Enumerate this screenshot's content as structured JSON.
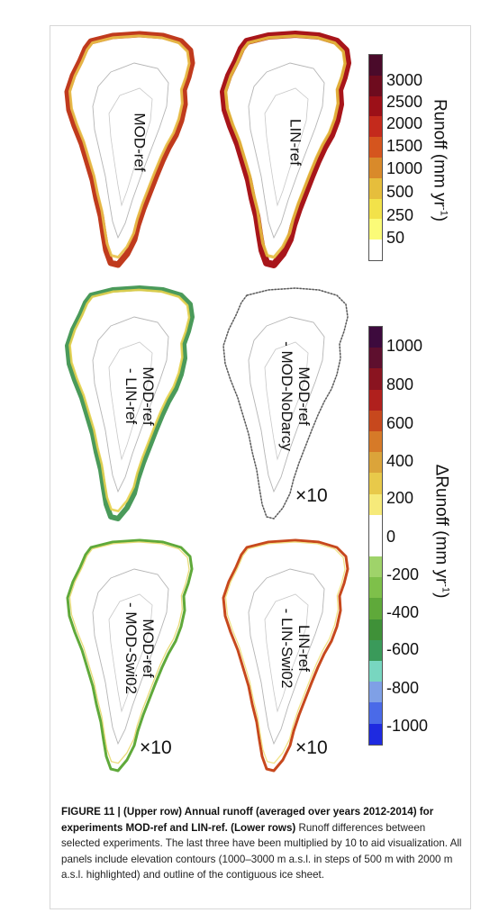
{
  "panels": [
    {
      "label_line1": "MOD-ref",
      "label_line2": "",
      "multiplier": ""
    },
    {
      "label_line1": "LIN-ref",
      "label_line2": "",
      "multiplier": ""
    },
    {
      "label_line1": "MOD-ref",
      "label_line2": "- LIN-ref",
      "multiplier": ""
    },
    {
      "label_line1": "MOD-ref",
      "label_line2": "- MOD-NoDarcy",
      "multiplier": "×10"
    },
    {
      "label_line1": "MOD-ref",
      "label_line2": "- MOD-Swi02",
      "multiplier": "×10"
    },
    {
      "label_line1": "LIN-ref",
      "label_line2": "- LIN-Swi02",
      "multiplier": "×10"
    }
  ],
  "runoff_colorbar": {
    "title": "Runoff (mm yr",
    "title_sup": "-1",
    "title_end": ")",
    "ticks": [
      "3000",
      "2500",
      "2000",
      "1500",
      "1000",
      "500",
      "250",
      "50"
    ],
    "colors": [
      "#4a0a2a",
      "#6e0b1e",
      "#9c1018",
      "#c42a1c",
      "#d5551e",
      "#d98a2a",
      "#e6be3c",
      "#f2e24a",
      "#fbfb78",
      "#ffffff"
    ]
  },
  "delta_colorbar": {
    "title": "ΔRunoff (mm yr",
    "title_sup": "-1",
    "title_end": ")",
    "ticks": [
      "1000",
      "800",
      "600",
      "400",
      "200",
      "0",
      "-200",
      "-400",
      "-600",
      "-800",
      "-1000"
    ],
    "colors": [
      "#3d0a3d",
      "#5e0f2e",
      "#8a1420",
      "#b0201d",
      "#c7481d",
      "#d67a28",
      "#dba43a",
      "#e8c94a",
      "#f6ea7a",
      "#ffffff",
      "#ffffff",
      "#9fd36a",
      "#7ec04a",
      "#5fa93a",
      "#3f9138",
      "#3a9a5a",
      "#78d6c0",
      "#7fa0e6",
      "#4a6ae8",
      "#1e2ae0"
    ]
  },
  "caption": {
    "figure_label": "FIGURE 11 | (Upper row) Annual runoff (averaged over years 2012-2014) for experiments MOD-ref and LIN-ref. (Lower rows)",
    "text": " Runoff differences between selected experiments. The last three have been multiplied by 10 to aid visualization. All panels include elevation contours (1000–3000 m a.s.l. in steps of 500 m with 2000 m a.s.l. highlighted) and outline of the contiguous ice sheet."
  }
}
